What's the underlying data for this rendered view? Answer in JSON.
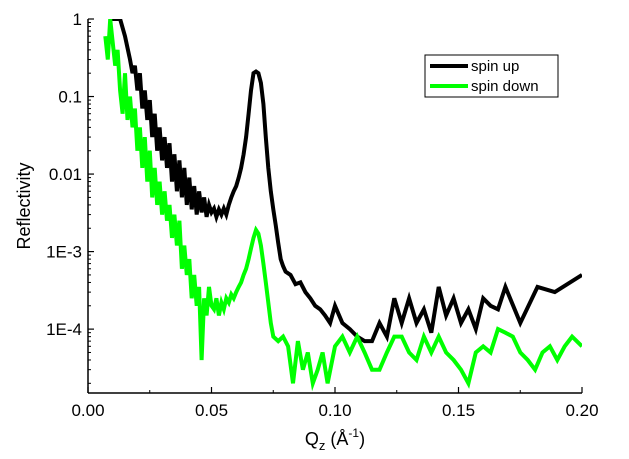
{
  "chart_data": {
    "type": "line",
    "xlabel": {
      "main": "Q",
      "sub": "z",
      "paren_open": " (Å",
      "sup": "-1",
      "paren_close": ")"
    },
    "ylabel": "Reflectivity",
    "xlim": [
      0.0,
      0.2
    ],
    "ylim": [
      1.5e-05,
      1
    ],
    "yscale": "log",
    "grid": false,
    "legend_position": "top-right",
    "x_ticks": [
      {
        "value": 0.0,
        "label": "0.00"
      },
      {
        "value": 0.05,
        "label": "0.05"
      },
      {
        "value": 0.1,
        "label": "0.10"
      },
      {
        "value": 0.15,
        "label": "0.15"
      },
      {
        "value": 0.2,
        "label": "0.20"
      }
    ],
    "y_ticks": [
      {
        "value": 1,
        "label": "1"
      },
      {
        "value": 0.1,
        "label": "0.1"
      },
      {
        "value": 0.01,
        "label": "0.01"
      },
      {
        "value": 0.001,
        "label": "1E-3"
      },
      {
        "value": 0.0001,
        "label": "1E-4"
      }
    ],
    "series": [
      {
        "name": "spin up",
        "color": "#000000",
        "points": [
          [
            0.009,
            1.0
          ],
          [
            0.013,
            1.0
          ],
          [
            0.015,
            0.6
          ],
          [
            0.017,
            0.3
          ],
          [
            0.018,
            0.2
          ],
          [
            0.019,
            0.25
          ],
          [
            0.02,
            0.12
          ],
          [
            0.021,
            0.2
          ],
          [
            0.022,
            0.07
          ],
          [
            0.023,
            0.12
          ],
          [
            0.024,
            0.05
          ],
          [
            0.025,
            0.09
          ],
          [
            0.026,
            0.03
          ],
          [
            0.027,
            0.06
          ],
          [
            0.028,
            0.02
          ],
          [
            0.029,
            0.04
          ],
          [
            0.03,
            0.015
          ],
          [
            0.031,
            0.03
          ],
          [
            0.032,
            0.012
          ],
          [
            0.033,
            0.025
          ],
          [
            0.034,
            0.008
          ],
          [
            0.035,
            0.018
          ],
          [
            0.036,
            0.006
          ],
          [
            0.037,
            0.015
          ],
          [
            0.038,
            0.005
          ],
          [
            0.039,
            0.012
          ],
          [
            0.04,
            0.004
          ],
          [
            0.041,
            0.009
          ],
          [
            0.042,
            0.0035
          ],
          [
            0.043,
            0.007
          ],
          [
            0.044,
            0.003
          ],
          [
            0.045,
            0.006
          ],
          [
            0.046,
            0.0032
          ],
          [
            0.047,
            0.005
          ],
          [
            0.048,
            0.0028
          ],
          [
            0.049,
            0.004
          ],
          [
            0.05,
            0.0032
          ],
          [
            0.051,
            0.0036
          ],
          [
            0.052,
            0.0028
          ],
          [
            0.053,
            0.0035
          ],
          [
            0.054,
            0.003
          ],
          [
            0.055,
            0.0036
          ],
          [
            0.056,
            0.003
          ],
          [
            0.057,
            0.004
          ],
          [
            0.058,
            0.005
          ],
          [
            0.059,
            0.006
          ],
          [
            0.06,
            0.007
          ],
          [
            0.061,
            0.009
          ],
          [
            0.062,
            0.012
          ],
          [
            0.063,
            0.018
          ],
          [
            0.064,
            0.03
          ],
          [
            0.065,
            0.06
          ],
          [
            0.066,
            0.12
          ],
          [
            0.067,
            0.2
          ],
          [
            0.068,
            0.21
          ],
          [
            0.069,
            0.2
          ],
          [
            0.07,
            0.15
          ],
          [
            0.071,
            0.08
          ],
          [
            0.072,
            0.03
          ],
          [
            0.073,
            0.012
          ],
          [
            0.074,
            0.006
          ],
          [
            0.075,
            0.0035
          ],
          [
            0.076,
            0.0022
          ],
          [
            0.077,
            0.0013
          ],
          [
            0.078,
            0.0008
          ],
          [
            0.079,
            0.00065
          ],
          [
            0.08,
            0.00055
          ],
          [
            0.082,
            0.0005
          ],
          [
            0.084,
            0.00038
          ],
          [
            0.086,
            0.0004
          ],
          [
            0.088,
            0.0003
          ],
          [
            0.09,
            0.00025
          ],
          [
            0.092,
            0.0002
          ],
          [
            0.094,
            0.00018
          ],
          [
            0.096,
            0.00015
          ],
          [
            0.098,
            0.00012
          ],
          [
            0.1,
            0.0002
          ],
          [
            0.103,
            0.00012
          ],
          [
            0.106,
            0.0001
          ],
          [
            0.109,
            8e-05
          ],
          [
            0.112,
            7e-05
          ],
          [
            0.115,
            7e-05
          ],
          [
            0.118,
            0.00012
          ],
          [
            0.121,
            8e-05
          ],
          [
            0.124,
            0.00025
          ],
          [
            0.127,
            0.00012
          ],
          [
            0.13,
            0.00025
          ],
          [
            0.133,
            0.00012
          ],
          [
            0.136,
            0.00018
          ],
          [
            0.139,
            9e-05
          ],
          [
            0.142,
            0.00035
          ],
          [
            0.145,
            0.00015
          ],
          [
            0.148,
            0.00025
          ],
          [
            0.151,
            0.00012
          ],
          [
            0.154,
            0.00018
          ],
          [
            0.157,
            0.0001
          ],
          [
            0.16,
            0.00025
          ],
          [
            0.163,
            0.0002
          ],
          [
            0.166,
            0.00018
          ],
          [
            0.169,
            0.00035
          ],
          [
            0.175,
            0.00012
          ],
          [
            0.182,
            0.00035
          ],
          [
            0.189,
            0.0003
          ],
          [
            0.2,
            0.0005
          ]
        ]
      },
      {
        "name": "spin down",
        "color": "#00ff00",
        "points": [
          [
            0.007,
            0.6
          ],
          [
            0.008,
            0.3
          ],
          [
            0.009,
            1.0
          ],
          [
            0.01,
            0.5
          ],
          [
            0.011,
            0.25
          ],
          [
            0.012,
            0.4
          ],
          [
            0.013,
            0.12
          ],
          [
            0.014,
            0.06
          ],
          [
            0.015,
            0.2
          ],
          [
            0.016,
            0.05
          ],
          [
            0.017,
            0.1
          ],
          [
            0.018,
            0.04
          ],
          [
            0.019,
            0.07
          ],
          [
            0.02,
            0.02
          ],
          [
            0.021,
            0.04
          ],
          [
            0.022,
            0.012
          ],
          [
            0.023,
            0.03
          ],
          [
            0.024,
            0.008
          ],
          [
            0.025,
            0.02
          ],
          [
            0.026,
            0.005
          ],
          [
            0.027,
            0.012
          ],
          [
            0.028,
            0.004
          ],
          [
            0.029,
            0.008
          ],
          [
            0.03,
            0.003
          ],
          [
            0.031,
            0.006
          ],
          [
            0.032,
            0.0025
          ],
          [
            0.033,
            0.004
          ],
          [
            0.034,
            0.0015
          ],
          [
            0.035,
            0.003
          ],
          [
            0.036,
            0.0012
          ],
          [
            0.037,
            0.0025
          ],
          [
            0.038,
            0.0006
          ],
          [
            0.039,
            0.0012
          ],
          [
            0.04,
            0.0005
          ],
          [
            0.041,
            0.0008
          ],
          [
            0.042,
            0.00025
          ],
          [
            0.043,
            0.0005
          ],
          [
            0.044,
            0.0002
          ],
          [
            0.045,
            0.00035
          ],
          [
            0.046,
            4e-05
          ],
          [
            0.047,
            0.00025
          ],
          [
            0.048,
            0.00015
          ],
          [
            0.049,
            0.00035
          ],
          [
            0.05,
            0.0002
          ],
          [
            0.051,
            0.00018
          ],
          [
            0.052,
            0.00025
          ],
          [
            0.053,
            0.00015
          ],
          [
            0.054,
            0.00022
          ],
          [
            0.055,
            0.00018
          ],
          [
            0.056,
            0.00025
          ],
          [
            0.057,
            0.00022
          ],
          [
            0.058,
            0.00028
          ],
          [
            0.059,
            0.00025
          ],
          [
            0.06,
            0.0003
          ],
          [
            0.061,
            0.00035
          ],
          [
            0.062,
            0.0004
          ],
          [
            0.063,
            0.0005
          ],
          [
            0.064,
            0.0006
          ],
          [
            0.065,
            0.0008
          ],
          [
            0.066,
            0.0011
          ],
          [
            0.067,
            0.0015
          ],
          [
            0.068,
            0.0019
          ],
          [
            0.069,
            0.0017
          ],
          [
            0.07,
            0.0012
          ],
          [
            0.071,
            0.0007
          ],
          [
            0.072,
            0.0004
          ],
          [
            0.073,
            0.00022
          ],
          [
            0.074,
            0.00012
          ],
          [
            0.075,
            8e-05
          ],
          [
            0.077,
            7e-05
          ],
          [
            0.079,
            8e-05
          ],
          [
            0.081,
            6e-05
          ],
          [
            0.083,
            2e-05
          ],
          [
            0.085,
            7e-05
          ],
          [
            0.087,
            3e-05
          ],
          [
            0.089,
            5e-05
          ],
          [
            0.091,
            2e-05
          ],
          [
            0.093,
            3e-05
          ],
          [
            0.095,
            5e-05
          ],
          [
            0.097,
            2e-05
          ],
          [
            0.1,
            6e-05
          ],
          [
            0.103,
            8e-05
          ],
          [
            0.106,
            5e-05
          ],
          [
            0.109,
            8e-05
          ],
          [
            0.112,
            5e-05
          ],
          [
            0.115,
            3e-05
          ],
          [
            0.118,
            3e-05
          ],
          [
            0.121,
            5e-05
          ],
          [
            0.124,
            8e-05
          ],
          [
            0.127,
            8e-05
          ],
          [
            0.13,
            5e-05
          ],
          [
            0.133,
            4e-05
          ],
          [
            0.136,
            8e-05
          ],
          [
            0.139,
            5e-05
          ],
          [
            0.142,
            8e-05
          ],
          [
            0.145,
            5e-05
          ],
          [
            0.148,
            4e-05
          ],
          [
            0.151,
            3e-05
          ],
          [
            0.154,
            2e-05
          ],
          [
            0.157,
            5e-05
          ],
          [
            0.16,
            6e-05
          ],
          [
            0.163,
            5e-05
          ],
          [
            0.166,
            0.0001
          ],
          [
            0.169,
            9e-05
          ],
          [
            0.172,
            8e-05
          ],
          [
            0.175,
            5e-05
          ],
          [
            0.178,
            4e-05
          ],
          [
            0.181,
            3e-05
          ],
          [
            0.184,
            5e-05
          ],
          [
            0.187,
            6e-05
          ],
          [
            0.19,
            4e-05
          ],
          [
            0.193,
            6e-05
          ],
          [
            0.196,
            8e-05
          ],
          [
            0.2,
            6e-05
          ]
        ]
      }
    ]
  }
}
